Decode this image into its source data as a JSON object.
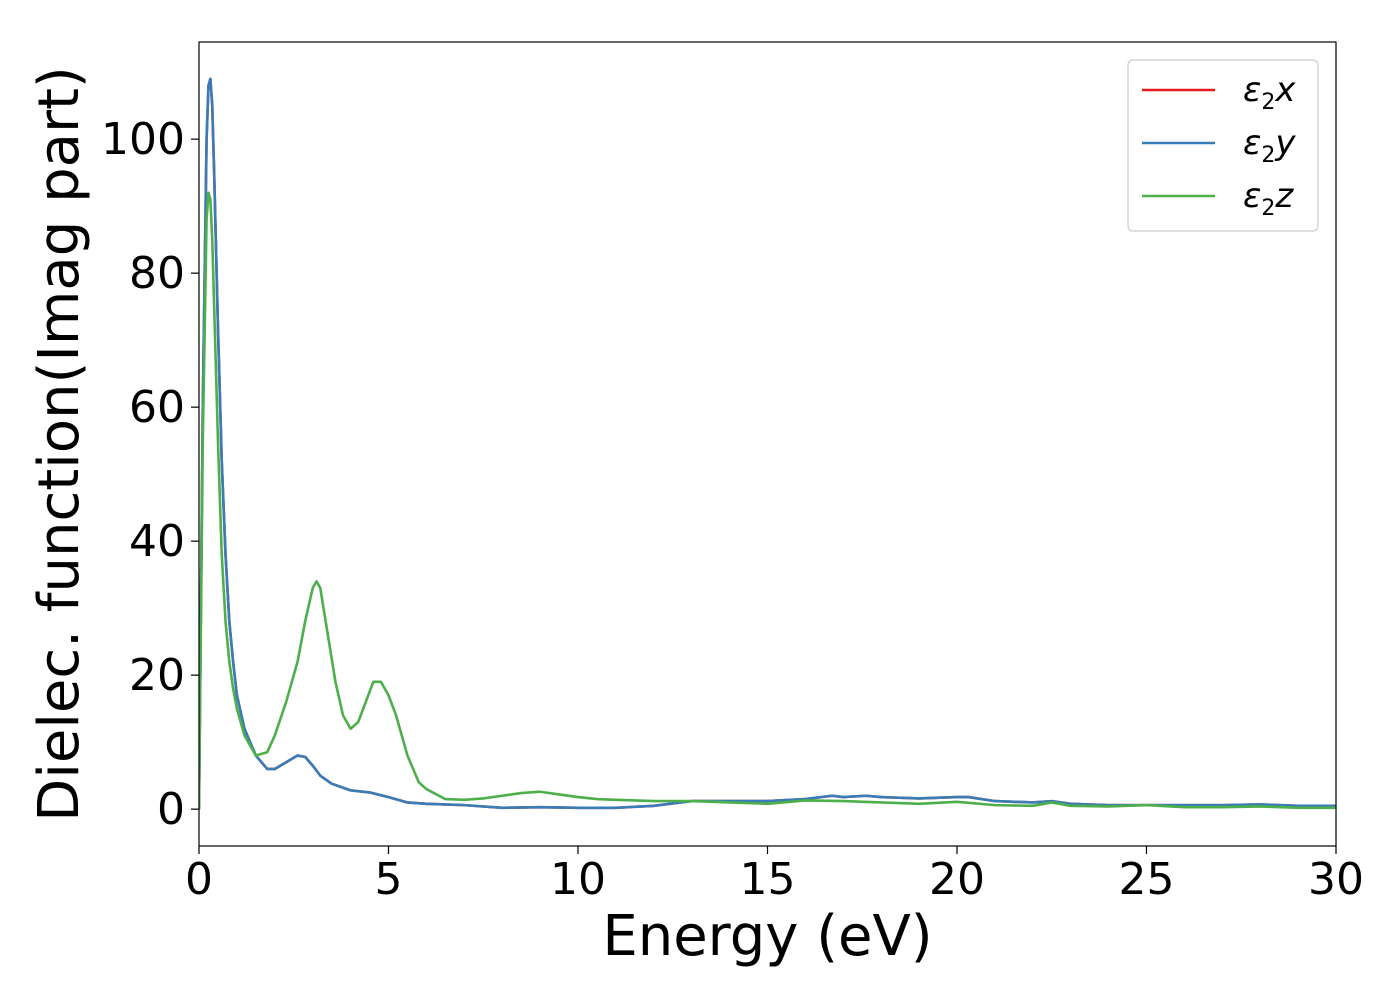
{
  "chart_data": {
    "type": "line",
    "title": "",
    "xlabel": "Energy (eV)",
    "ylabel": "Dielec. function(Imag part)",
    "xlim": [
      0,
      30
    ],
    "ylim": [
      -5.5,
      114.5
    ],
    "xticks": [
      0,
      5,
      10,
      15,
      20,
      25,
      30
    ],
    "yticks": [
      0,
      20,
      40,
      60,
      80,
      100
    ],
    "grid": false,
    "legend_position": "top-right",
    "series": [
      {
        "name": "ε2x",
        "legend_base": "ε",
        "legend_sub": "2",
        "legend_tail": "x",
        "color": "#e41a1c",
        "x": [
          0,
          0.1,
          0.2,
          0.25,
          0.3,
          0.35,
          0.4,
          0.5,
          0.6,
          0.7,
          0.8,
          0.9,
          1.0,
          1.2,
          1.5,
          1.8,
          2.0,
          2.3,
          2.6,
          2.8,
          3.0,
          3.2,
          3.5,
          4.0,
          4.5,
          5.0,
          5.5,
          6.0,
          7.0,
          8.0,
          9.0,
          10.0,
          11.0,
          12.0,
          13.0,
          14.0,
          15.0,
          16.0,
          16.7,
          17.0,
          17.6,
          18.0,
          19.0,
          20.0,
          20.3,
          21.0,
          22.0,
          22.5,
          23.0,
          24.0,
          25.0,
          26.0,
          27.0,
          28.0,
          29.0,
          30.0
        ],
        "y": [
          0,
          60,
          100,
          108,
          109,
          105,
          95,
          72,
          52,
          38,
          28,
          22,
          17,
          12,
          8,
          6,
          6,
          7,
          8,
          7.8,
          6.5,
          5,
          3.8,
          2.8,
          2.5,
          1.8,
          1.0,
          0.8,
          0.6,
          0.2,
          0.3,
          0.2,
          0.2,
          0.5,
          1.2,
          1.2,
          1.2,
          1.5,
          2.0,
          1.8,
          2.0,
          1.8,
          1.6,
          1.8,
          1.8,
          1.2,
          1.0,
          1.2,
          0.8,
          0.6,
          0.6,
          0.6,
          0.6,
          0.7,
          0.5,
          0.5
        ]
      },
      {
        "name": "ε2y",
        "legend_base": "ε",
        "legend_sub": "2",
        "legend_tail": "y",
        "color": "#377eb8",
        "x": [
          0,
          0.1,
          0.2,
          0.25,
          0.3,
          0.35,
          0.4,
          0.5,
          0.6,
          0.7,
          0.8,
          0.9,
          1.0,
          1.2,
          1.5,
          1.8,
          2.0,
          2.3,
          2.6,
          2.8,
          3.0,
          3.2,
          3.5,
          4.0,
          4.5,
          5.0,
          5.5,
          6.0,
          7.0,
          8.0,
          9.0,
          10.0,
          11.0,
          12.0,
          13.0,
          14.0,
          15.0,
          16.0,
          16.7,
          17.0,
          17.6,
          18.0,
          19.0,
          20.0,
          20.3,
          21.0,
          22.0,
          22.5,
          23.0,
          24.0,
          25.0,
          26.0,
          27.0,
          28.0,
          29.0,
          30.0
        ],
        "y": [
          0,
          60,
          100,
          108,
          109,
          105,
          95,
          72,
          52,
          38,
          28,
          22,
          17,
          12,
          8,
          6,
          6,
          7,
          8,
          7.8,
          6.5,
          5,
          3.8,
          2.8,
          2.5,
          1.8,
          1.0,
          0.8,
          0.6,
          0.2,
          0.3,
          0.2,
          0.2,
          0.5,
          1.2,
          1.2,
          1.2,
          1.5,
          2.0,
          1.8,
          2.0,
          1.8,
          1.6,
          1.8,
          1.8,
          1.2,
          1.0,
          1.2,
          0.8,
          0.6,
          0.6,
          0.6,
          0.6,
          0.7,
          0.5,
          0.5
        ]
      },
      {
        "name": "ε2z",
        "legend_base": "ε",
        "legend_sub": "2",
        "legend_tail": "z",
        "color": "#4daf4a",
        "x": [
          0,
          0.1,
          0.2,
          0.25,
          0.3,
          0.35,
          0.4,
          0.5,
          0.6,
          0.7,
          0.8,
          0.9,
          1.0,
          1.2,
          1.5,
          1.8,
          2.0,
          2.3,
          2.6,
          2.8,
          3.0,
          3.1,
          3.2,
          3.4,
          3.6,
          3.8,
          4.0,
          4.2,
          4.4,
          4.6,
          4.8,
          5.0,
          5.2,
          5.5,
          5.8,
          6.0,
          6.5,
          7.0,
          7.5,
          8.0,
          8.5,
          9.0,
          9.5,
          10.0,
          10.5,
          11.0,
          12.0,
          13.0,
          14.0,
          15.0,
          16.0,
          17.0,
          18.0,
          19.0,
          20.0,
          21.0,
          22.0,
          22.5,
          23.0,
          24.0,
          25.0,
          26.0,
          27.0,
          28.0,
          29.0,
          30.0
        ],
        "y": [
          0,
          55,
          88,
          92,
          91,
          85,
          75,
          55,
          38,
          28,
          22,
          18,
          15,
          11,
          8,
          8.5,
          11,
          16,
          22,
          28,
          33,
          34,
          33,
          26,
          19,
          14,
          12,
          13,
          16,
          19,
          19,
          17,
          14,
          8,
          4,
          3,
          1.5,
          1.4,
          1.6,
          2.0,
          2.4,
          2.6,
          2.2,
          1.8,
          1.5,
          1.4,
          1.2,
          1.2,
          1.0,
          0.8,
          1.3,
          1.2,
          1.0,
          0.8,
          1.1,
          0.6,
          0.5,
          1.0,
          0.5,
          0.4,
          0.6,
          0.3,
          0.3,
          0.4,
          0.2,
          0.2
        ]
      }
    ]
  }
}
